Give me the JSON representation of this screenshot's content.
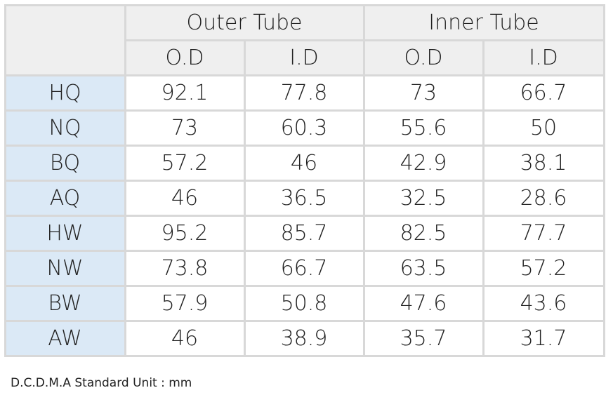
{
  "header": {
    "groups": [
      "Outer Tube",
      "Inner Tube"
    ],
    "subheaders": [
      "O.D",
      "I.D",
      "O.D",
      "I.D"
    ]
  },
  "table": {
    "rows": [
      [
        "HQ",
        92.1,
        77.8,
        73,
        66.7
      ],
      [
        "NQ",
        73,
        60.3,
        55.6,
        50
      ],
      [
        "BQ",
        57.2,
        46,
        42.9,
        38.1
      ],
      [
        "AQ",
        46,
        36.5,
        32.5,
        28.6
      ],
      [
        "HW",
        95.2,
        85.7,
        82.5,
        77.7
      ],
      [
        "NW",
        73.8,
        66.7,
        63.5,
        57.2
      ],
      [
        "BW",
        57.9,
        50.8,
        47.6,
        43.6
      ],
      [
        "AW",
        46,
        38.9,
        35.7,
        31.7
      ]
    ]
  },
  "footer": {
    "note": "D.C.D.M.A Standard Unit : mm"
  }
}
